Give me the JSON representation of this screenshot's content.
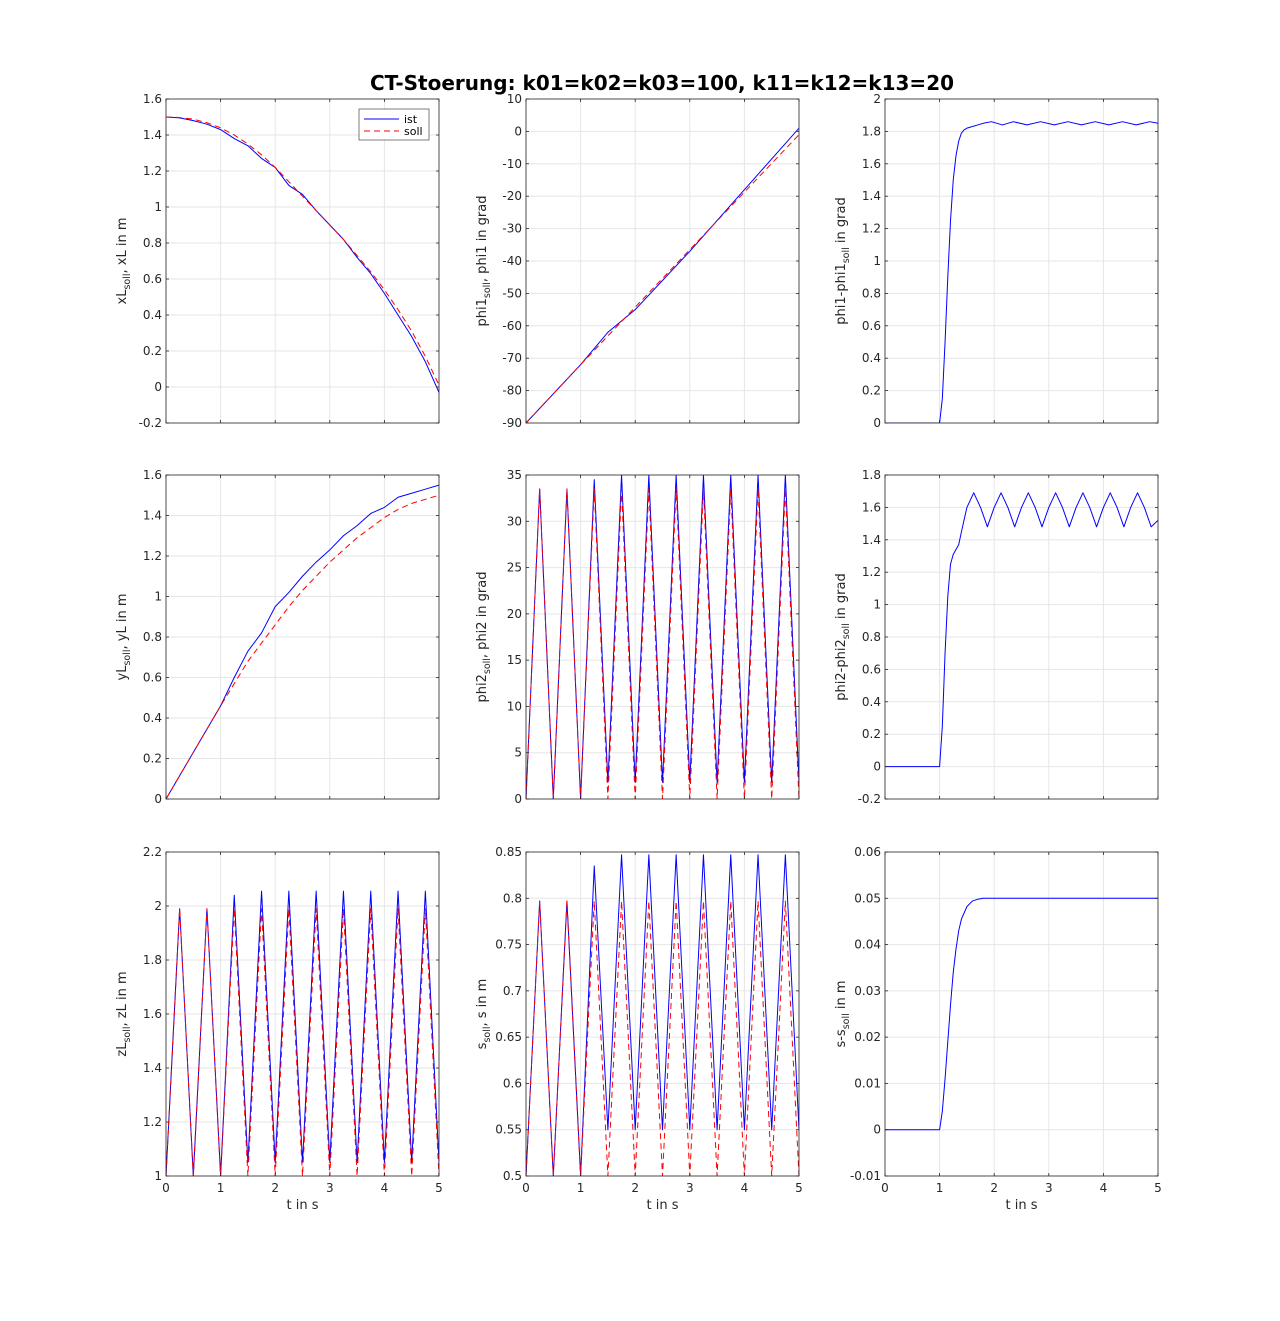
{
  "title": "CT-Stoerung: k01=k02=k03=100, k11=k12=k13=20",
  "colors": {
    "ist": "#0000ff",
    "soll": "#ff0000",
    "grid": "#e6e6e6",
    "axis": "#262626"
  },
  "legend": {
    "ist": "ist",
    "soll": "soll"
  },
  "chart_data": [
    {
      "id": "xL",
      "type": "line",
      "ylabel": {
        "main": "xL",
        "sub": "soll",
        "rest": ", xL in m"
      },
      "xlabel": "",
      "xlim": [
        0,
        5
      ],
      "ylim": [
        -0.2,
        1.6
      ],
      "xticks": [
        0,
        1,
        2,
        3,
        4,
        5
      ],
      "show_xticklabels": false,
      "yticks": [
        -0.2,
        0,
        0.2,
        0.4,
        0.6,
        0.8,
        1,
        1.2,
        1.4,
        1.6
      ],
      "series": [
        {
          "name": "ist",
          "x": [
            0,
            0.25,
            0.5,
            0.75,
            1,
            1.25,
            1.5,
            1.75,
            2,
            2.25,
            2.5,
            2.75,
            3,
            3.25,
            3.5,
            3.75,
            4,
            4.25,
            4.5,
            4.75,
            5
          ],
          "y": [
            1.5,
            1.495,
            1.48,
            1.46,
            1.43,
            1.38,
            1.34,
            1.27,
            1.22,
            1.12,
            1.07,
            0.98,
            0.9,
            0.82,
            0.72,
            0.63,
            0.52,
            0.4,
            0.28,
            0.14,
            -0.03
          ]
        },
        {
          "name": "soll",
          "x": [
            0,
            0.25,
            0.5,
            0.75,
            1,
            1.25,
            1.5,
            1.75,
            2,
            2.25,
            2.5,
            2.75,
            3,
            3.25,
            3.5,
            3.75,
            4,
            4.25,
            4.5,
            4.75,
            5
          ],
          "y": [
            1.5,
            1.497,
            1.488,
            1.468,
            1.44,
            1.4,
            1.35,
            1.29,
            1.22,
            1.14,
            1.06,
            0.98,
            0.9,
            0.82,
            0.73,
            0.64,
            0.54,
            0.43,
            0.31,
            0.17,
            0.01
          ]
        }
      ],
      "legend": true
    },
    {
      "id": "phi1",
      "type": "line",
      "ylabel": {
        "main": "phi1",
        "sub": "soll",
        "rest": ", phi1 in grad"
      },
      "xlabel": "",
      "xlim": [
        0,
        5
      ],
      "ylim": [
        -90,
        10
      ],
      "xticks": [
        0,
        1,
        2,
        3,
        4,
        5
      ],
      "show_xticklabels": false,
      "yticks": [
        -90,
        -80,
        -70,
        -60,
        -50,
        -40,
        -30,
        -20,
        -10,
        0,
        10
      ],
      "series": [
        {
          "name": "ist",
          "x": [
            0,
            1,
            1.5,
            2,
            3,
            4,
            5
          ],
          "y": [
            -90,
            -72,
            -62,
            -55,
            -37,
            -18,
            1
          ]
        },
        {
          "name": "soll",
          "x": [
            0,
            1,
            5
          ],
          "y": [
            -90,
            -72,
            -1
          ]
        }
      ]
    },
    {
      "id": "dphi1",
      "type": "line",
      "ylabel": {
        "main": "phi1-phi1",
        "sub": "soll",
        "rest": " in grad"
      },
      "xlabel": "",
      "xlim": [
        0,
        5
      ],
      "ylim": [
        0,
        2
      ],
      "xticks": [
        0,
        1,
        2,
        3,
        4,
        5
      ],
      "show_xticklabels": false,
      "yticks": [
        0,
        0.2,
        0.4,
        0.6,
        0.8,
        1,
        1.2,
        1.4,
        1.6,
        1.8,
        2
      ],
      "series": [
        {
          "name": "ist",
          "x": [
            0,
            1,
            1.05,
            1.1,
            1.15,
            1.2,
            1.25,
            1.3,
            1.35,
            1.4,
            1.45,
            1.5,
            1.55,
            1.6,
            1.7,
            1.8,
            1.95,
            2.15,
            2.35,
            2.6,
            2.85,
            3.1,
            3.35,
            3.6,
            3.85,
            4.1,
            4.35,
            4.6,
            4.85,
            5
          ],
          "y": [
            0,
            0,
            0.15,
            0.5,
            0.9,
            1.25,
            1.5,
            1.65,
            1.74,
            1.79,
            1.81,
            1.82,
            1.825,
            1.83,
            1.84,
            1.85,
            1.86,
            1.84,
            1.86,
            1.84,
            1.86,
            1.84,
            1.86,
            1.84,
            1.86,
            1.84,
            1.86,
            1.84,
            1.86,
            1.85
          ]
        }
      ]
    },
    {
      "id": "yL",
      "type": "line",
      "ylabel": {
        "main": "yL",
        "sub": "soll",
        "rest": ", yL in m"
      },
      "xlabel": "",
      "xlim": [
        0,
        5
      ],
      "ylim": [
        0,
        1.6
      ],
      "xticks": [
        0,
        1,
        2,
        3,
        4,
        5
      ],
      "show_xticklabels": false,
      "yticks": [
        0,
        0.2,
        0.4,
        0.6,
        0.8,
        1,
        1.2,
        1.4,
        1.6
      ],
      "series": [
        {
          "name": "ist",
          "x": [
            0,
            0.5,
            1,
            1.25,
            1.5,
            1.75,
            2,
            2.25,
            2.5,
            2.75,
            3,
            3.25,
            3.5,
            3.75,
            4,
            4.25,
            4.5,
            4.75,
            5
          ],
          "y": [
            0,
            0.23,
            0.46,
            0.6,
            0.73,
            0.82,
            0.95,
            1.02,
            1.1,
            1.17,
            1.23,
            1.3,
            1.35,
            1.41,
            1.44,
            1.49,
            1.51,
            1.53,
            1.55
          ]
        },
        {
          "name": "soll",
          "x": [
            0,
            0.5,
            1,
            1.25,
            1.5,
            1.75,
            2,
            2.25,
            2.5,
            2.75,
            3,
            3.25,
            3.5,
            3.75,
            4,
            4.25,
            4.5,
            4.75,
            5
          ],
          "y": [
            0,
            0.23,
            0.46,
            0.57,
            0.68,
            0.77,
            0.86,
            0.95,
            1.03,
            1.1,
            1.17,
            1.23,
            1.29,
            1.34,
            1.39,
            1.43,
            1.46,
            1.48,
            1.5
          ]
        }
      ]
    },
    {
      "id": "phi2",
      "type": "line",
      "ylabel": {
        "main": "phi2",
        "sub": "soll",
        "rest": ", phi2 in grad"
      },
      "xlabel": "",
      "xlim": [
        0,
        5
      ],
      "ylim": [
        0,
        35
      ],
      "xticks": [
        0,
        1,
        2,
        3,
        4,
        5
      ],
      "show_xticklabels": false,
      "yticks": [
        0,
        5,
        10,
        15,
        20,
        25,
        30,
        35
      ],
      "series": [
        {
          "name": "ist",
          "x": [
            0,
            0.25,
            0.5,
            0.75,
            1,
            1.25,
            1.5,
            1.75,
            2,
            2.25,
            2.5,
            2.75,
            3,
            3.25,
            3.5,
            3.75,
            4,
            4.25,
            4.5,
            4.75,
            5
          ],
          "y": [
            0,
            33.5,
            0,
            33.5,
            0,
            34.5,
            1.8,
            35,
            1.8,
            35,
            1.8,
            35,
            1.8,
            35,
            1.8,
            35,
            1.8,
            35,
            1.8,
            35,
            1.8
          ]
        },
        {
          "name": "soll",
          "x": [
            0,
            0.25,
            0.5,
            0.75,
            1,
            1.25,
            1.5,
            1.75,
            2,
            2.25,
            2.5,
            2.75,
            3,
            3.25,
            3.5,
            3.75,
            4,
            4.25,
            4.5,
            4.75,
            5
          ],
          "y": [
            0,
            33.5,
            0,
            33.5,
            0,
            33.5,
            0,
            33.5,
            0,
            33.5,
            0,
            33.5,
            0,
            33.5,
            0,
            33.5,
            0,
            33.5,
            0,
            33.5,
            0
          ]
        }
      ]
    },
    {
      "id": "dphi2",
      "type": "line",
      "ylabel": {
        "main": "phi2-phi2",
        "sub": "soll",
        "rest": " in grad"
      },
      "xlabel": "",
      "xlim": [
        0,
        5
      ],
      "ylim": [
        -0.2,
        1.8
      ],
      "xticks": [
        0,
        1,
        2,
        3,
        4,
        5
      ],
      "show_xticklabels": false,
      "yticks": [
        -0.2,
        0,
        0.2,
        0.4,
        0.6,
        0.8,
        1,
        1.2,
        1.4,
        1.6,
        1.8
      ],
      "series": [
        {
          "name": "ist",
          "x": [
            0,
            1,
            1.05,
            1.1,
            1.15,
            1.2,
            1.25,
            1.3,
            1.35,
            1.4,
            1.5,
            1.625,
            1.75,
            1.875,
            2.0,
            2.125,
            2.25,
            2.375,
            2.5,
            2.625,
            2.75,
            2.875,
            3.0,
            3.125,
            3.25,
            3.375,
            3.5,
            3.625,
            3.75,
            3.875,
            4.0,
            4.125,
            4.25,
            4.375,
            4.5,
            4.625,
            4.75,
            4.875,
            5
          ],
          "y": [
            0,
            0,
            0.25,
            0.7,
            1.05,
            1.25,
            1.31,
            1.34,
            1.37,
            1.45,
            1.6,
            1.69,
            1.6,
            1.48,
            1.6,
            1.69,
            1.6,
            1.48,
            1.6,
            1.69,
            1.6,
            1.48,
            1.6,
            1.69,
            1.6,
            1.48,
            1.6,
            1.69,
            1.6,
            1.48,
            1.6,
            1.69,
            1.6,
            1.48,
            1.6,
            1.69,
            1.6,
            1.48,
            1.52
          ]
        }
      ]
    },
    {
      "id": "zL",
      "type": "line",
      "ylabel": {
        "main": "zL",
        "sub": "soll",
        "rest": ", zL in m"
      },
      "xlabel": "t in s",
      "xlim": [
        0,
        5
      ],
      "ylim": [
        1,
        2.2
      ],
      "xticks": [
        0,
        1,
        2,
        3,
        4,
        5
      ],
      "show_xticklabels": true,
      "yticks": [
        1,
        1.2,
        1.4,
        1.6,
        1.8,
        2,
        2.2
      ],
      "series": [
        {
          "name": "ist",
          "x": [
            0,
            0.25,
            0.5,
            0.75,
            1,
            1.25,
            1.5,
            1.75,
            2,
            2.25,
            2.5,
            2.75,
            3,
            3.25,
            3.5,
            3.75,
            4,
            4.25,
            4.5,
            4.75,
            5
          ],
          "y": [
            1,
            1.99,
            1,
            1.99,
            1,
            2.04,
            1.05,
            2.055,
            1.05,
            2.055,
            1.05,
            2.055,
            1.05,
            2.055,
            1.05,
            2.055,
            1.05,
            2.055,
            1.05,
            2.055,
            1.05
          ]
        },
        {
          "name": "soll",
          "x": [
            0,
            0.25,
            0.5,
            0.75,
            1,
            1.25,
            1.5,
            1.75,
            2,
            2.25,
            2.5,
            2.75,
            3,
            3.25,
            3.5,
            3.75,
            4,
            4.25,
            4.5,
            4.75,
            5
          ],
          "y": [
            1,
            1.99,
            1,
            1.99,
            1,
            1.99,
            1,
            1.99,
            1,
            1.99,
            1,
            1.99,
            1,
            1.99,
            1,
            1.99,
            1,
            1.99,
            1,
            1.99,
            1
          ]
        }
      ]
    },
    {
      "id": "s",
      "type": "line",
      "ylabel": {
        "main": "s",
        "sub": "soll",
        "rest": ", s in m"
      },
      "xlabel": "t in s",
      "xlim": [
        0,
        5
      ],
      "ylim": [
        0.5,
        0.85
      ],
      "xticks": [
        0,
        1,
        2,
        3,
        4,
        5
      ],
      "show_xticklabels": true,
      "yticks": [
        0.5,
        0.55,
        0.6,
        0.65,
        0.7,
        0.75,
        0.8,
        0.85
      ],
      "series": [
        {
          "name": "ist",
          "x": [
            0,
            0.25,
            0.5,
            0.75,
            1,
            1.25,
            1.5,
            1.75,
            2,
            2.25,
            2.5,
            2.75,
            3,
            3.25,
            3.5,
            3.75,
            4,
            4.25,
            4.5,
            4.75,
            5
          ],
          "y": [
            0.5,
            0.797,
            0.5,
            0.797,
            0.5,
            0.835,
            0.55,
            0.847,
            0.55,
            0.847,
            0.55,
            0.847,
            0.55,
            0.847,
            0.55,
            0.847,
            0.55,
            0.847,
            0.55,
            0.847,
            0.55
          ]
        },
        {
          "name": "soll",
          "x": [
            0,
            0.25,
            0.5,
            0.75,
            1,
            1.25,
            1.5,
            1.75,
            2,
            2.25,
            2.5,
            2.75,
            3,
            3.25,
            3.5,
            3.75,
            4,
            4.25,
            4.5,
            4.75,
            5
          ],
          "y": [
            0.5,
            0.797,
            0.5,
            0.797,
            0.5,
            0.797,
            0.5,
            0.797,
            0.5,
            0.797,
            0.5,
            0.797,
            0.5,
            0.797,
            0.5,
            0.797,
            0.5,
            0.797,
            0.5,
            0.797,
            0.5
          ]
        }
      ]
    },
    {
      "id": "ds",
      "type": "line",
      "ylabel": {
        "main": "s-s",
        "sub": "soll",
        "rest": " in m"
      },
      "xlabel": "t in s",
      "xlim": [
        0,
        5
      ],
      "ylim": [
        -0.01,
        0.06
      ],
      "xticks": [
        0,
        1,
        2,
        3,
        4,
        5
      ],
      "show_xticklabels": true,
      "yticks": [
        -0.01,
        0,
        0.01,
        0.02,
        0.03,
        0.04,
        0.05,
        0.06
      ],
      "series": [
        {
          "name": "ist",
          "x": [
            0,
            1,
            1.05,
            1.1,
            1.15,
            1.2,
            1.25,
            1.3,
            1.35,
            1.4,
            1.5,
            1.6,
            1.7,
            1.8,
            1.9,
            2,
            5
          ],
          "y": [
            0,
            0,
            0.004,
            0.011,
            0.019,
            0.027,
            0.034,
            0.039,
            0.043,
            0.0455,
            0.0482,
            0.0494,
            0.0498,
            0.05,
            0.05,
            0.05,
            0.05
          ]
        }
      ]
    }
  ]
}
